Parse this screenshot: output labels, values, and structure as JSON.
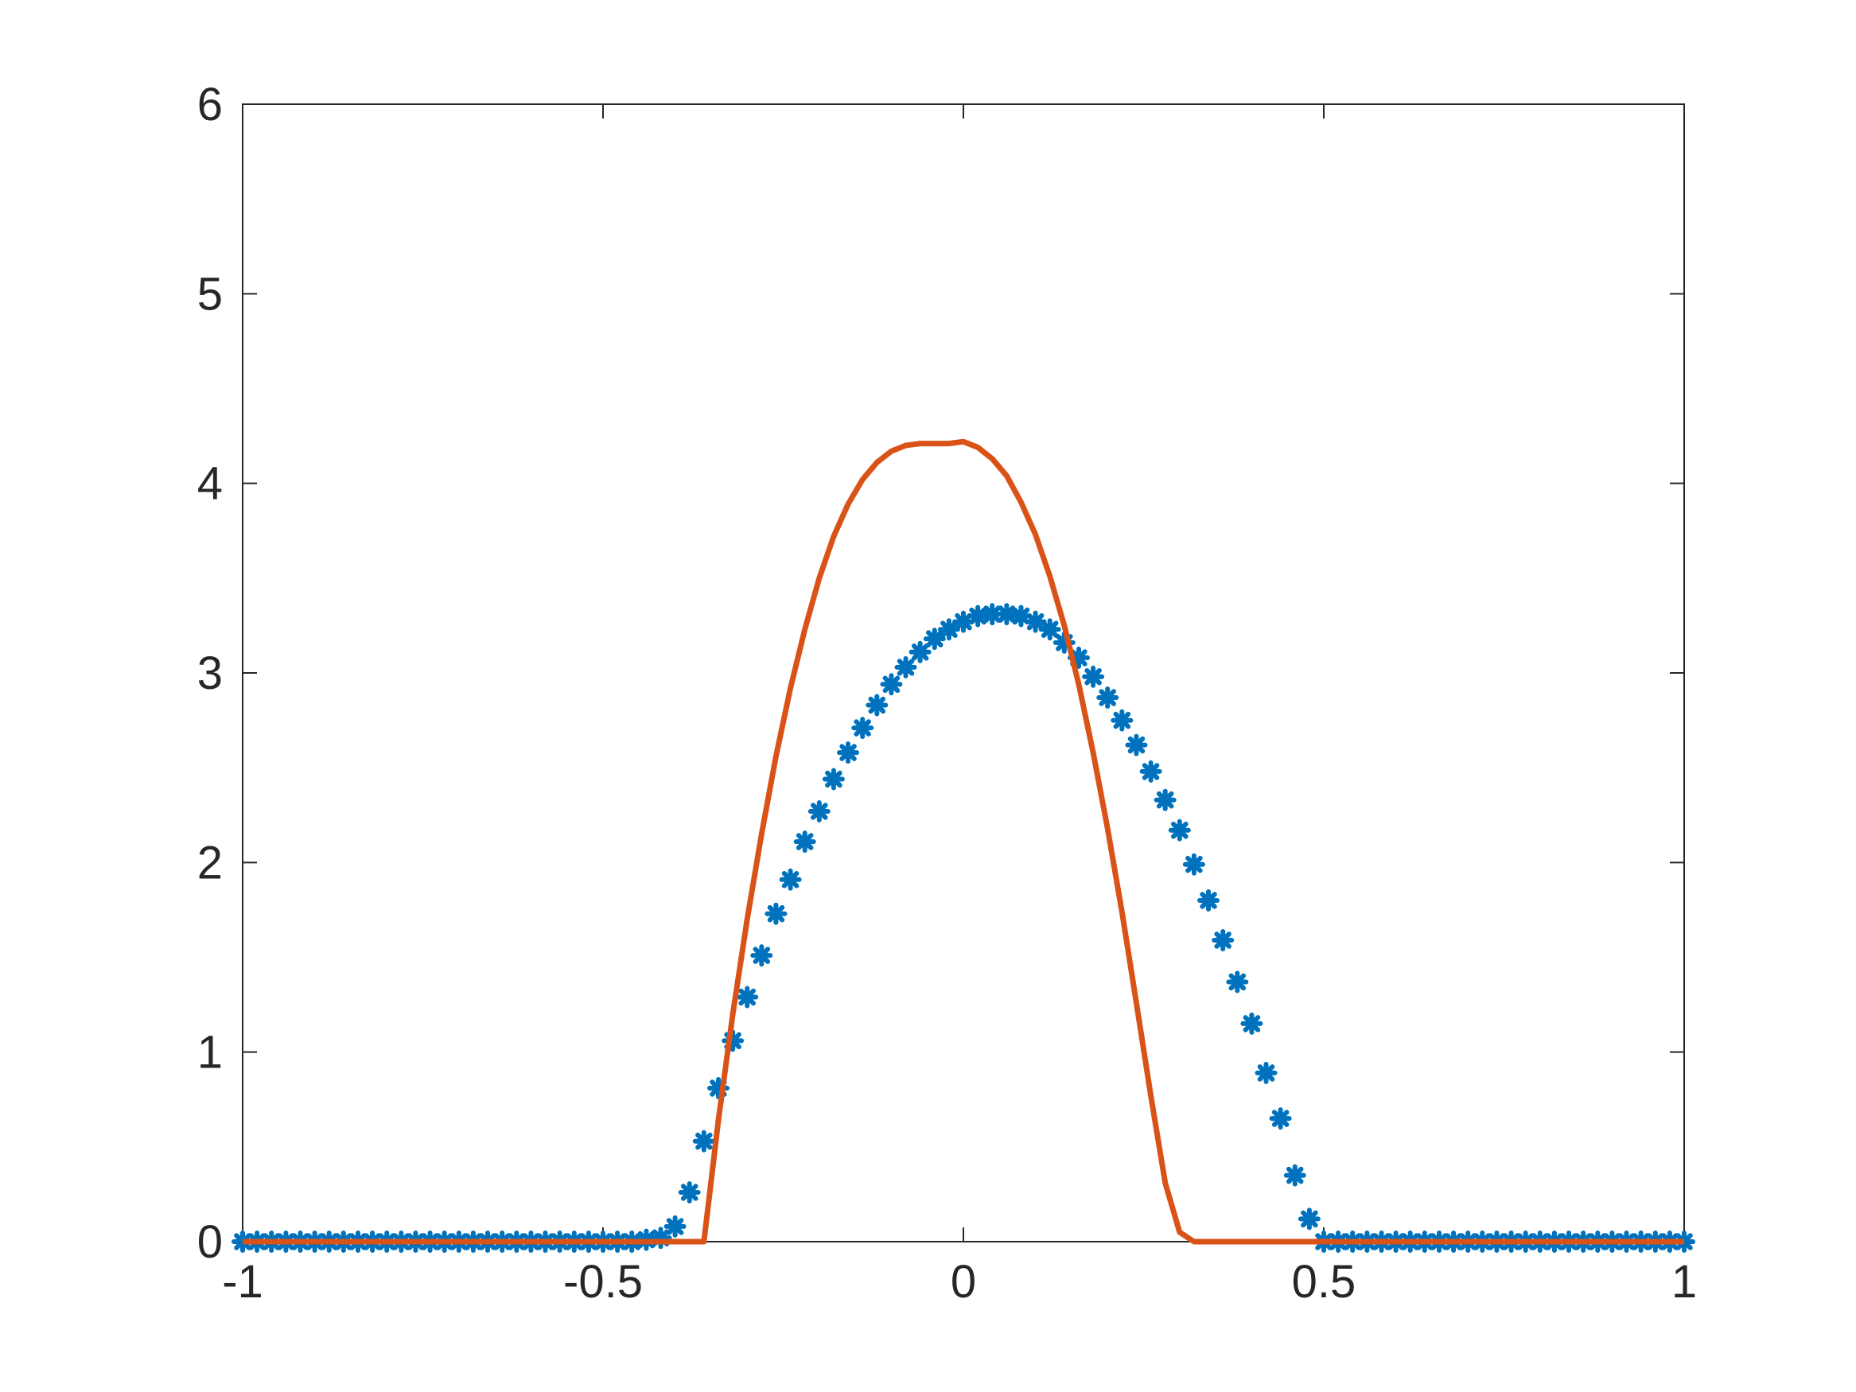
{
  "chart_data": {
    "type": "line",
    "title": "",
    "xlabel": "",
    "ylabel": "",
    "xlim": [
      -1,
      1
    ],
    "ylim": [
      0,
      6
    ],
    "grid": false,
    "legend": "none",
    "xticks": [
      -1,
      -0.5,
      0,
      0.5,
      1
    ],
    "xtick_labels": [
      "-1",
      "-0.5",
      "0",
      "0.5",
      "1"
    ],
    "yticks": [
      0,
      1,
      2,
      3,
      4,
      5,
      6
    ],
    "ytick_labels": [
      "0",
      "1",
      "2",
      "3",
      "4",
      "5",
      "6"
    ],
    "series": [
      {
        "marker": "asterisk",
        "color": "#0072BD",
        "x": [
          -1,
          -0.98,
          -0.96,
          -0.94,
          -0.92,
          -0.9,
          -0.88,
          -0.86,
          -0.84,
          -0.82,
          -0.8,
          -0.78,
          -0.76,
          -0.74,
          -0.72,
          -0.7,
          -0.68,
          -0.66,
          -0.64,
          -0.62,
          -0.6,
          -0.58,
          -0.56,
          -0.54,
          -0.52,
          -0.5,
          -0.48,
          -0.46,
          -0.44,
          -0.42,
          -0.4,
          -0.38,
          -0.36,
          -0.34,
          -0.32,
          -0.3,
          -0.28,
          -0.26,
          -0.24,
          -0.22,
          -0.2,
          -0.18,
          -0.16,
          -0.14,
          -0.12,
          -0.1,
          -0.08,
          -0.06,
          -0.04,
          -0.02,
          0,
          0.02,
          0.04,
          0.06,
          0.08,
          0.1,
          0.12,
          0.14,
          0.16,
          0.18,
          0.2,
          0.22,
          0.24,
          0.26,
          0.28,
          0.3,
          0.32,
          0.34,
          0.36,
          0.38,
          0.4,
          0.42,
          0.44,
          0.46,
          0.48,
          0.5,
          0.52,
          0.54,
          0.56,
          0.58,
          0.6,
          0.62,
          0.64,
          0.66,
          0.68,
          0.7,
          0.72,
          0.74,
          0.76,
          0.78,
          0.8,
          0.82,
          0.84,
          0.86,
          0.88,
          0.9,
          0.92,
          0.94,
          0.96,
          0.98,
          1
        ],
        "y": [
          0,
          0,
          0,
          0,
          0,
          0,
          0,
          0,
          0,
          0,
          0,
          0,
          0,
          0,
          0,
          0,
          0,
          0,
          0,
          0,
          0,
          0,
          0,
          0,
          0,
          0,
          0,
          0,
          0.01,
          0.02,
          0.08,
          0.26,
          0.53,
          0.81,
          1.06,
          1.29,
          1.51,
          1.73,
          1.91,
          2.11,
          2.27,
          2.44,
          2.58,
          2.71,
          2.83,
          2.94,
          3.03,
          3.11,
          3.18,
          3.23,
          3.27,
          3.3,
          3.31,
          3.31,
          3.3,
          3.27,
          3.23,
          3.16,
          3.08,
          2.98,
          2.87,
          2.75,
          2.62,
          2.48,
          2.33,
          2.17,
          1.99,
          1.8,
          1.59,
          1.37,
          1.15,
          0.89,
          0.65,
          0.35,
          0.12,
          0,
          0,
          0,
          0,
          0,
          0,
          0,
          0,
          0,
          0,
          0,
          0,
          0,
          0,
          0,
          0,
          0,
          0,
          0,
          0,
          0,
          0,
          0,
          0,
          0,
          0
        ]
      },
      {
        "marker": "none",
        "color": "#D95319",
        "x": [
          -1,
          -0.36,
          -0.34,
          -0.32,
          -0.3,
          -0.28,
          -0.26,
          -0.24,
          -0.22,
          -0.2,
          -0.18,
          -0.16,
          -0.14,
          -0.12,
          -0.1,
          -0.08,
          -0.06,
          -0.04,
          -0.02,
          0,
          0.02,
          0.04,
          0.06,
          0.08,
          0.1,
          0.12,
          0.14,
          0.16,
          0.18,
          0.2,
          0.22,
          0.24,
          0.26,
          0.28,
          0.3,
          0.32,
          0.34,
          0.36,
          1
        ],
        "y": [
          0,
          0,
          0.64,
          1.2,
          1.7,
          2.15,
          2.56,
          2.92,
          3.23,
          3.5,
          3.72,
          3.89,
          4.02,
          4.11,
          4.17,
          4.2,
          4.21,
          4.21,
          4.21,
          4.22,
          4.19,
          4.13,
          4.04,
          3.9,
          3.73,
          3.51,
          3.25,
          2.94,
          2.58,
          2.18,
          1.74,
          1.26,
          0.77,
          0.31,
          0.05,
          0,
          0,
          0,
          0
        ]
      }
    ]
  }
}
